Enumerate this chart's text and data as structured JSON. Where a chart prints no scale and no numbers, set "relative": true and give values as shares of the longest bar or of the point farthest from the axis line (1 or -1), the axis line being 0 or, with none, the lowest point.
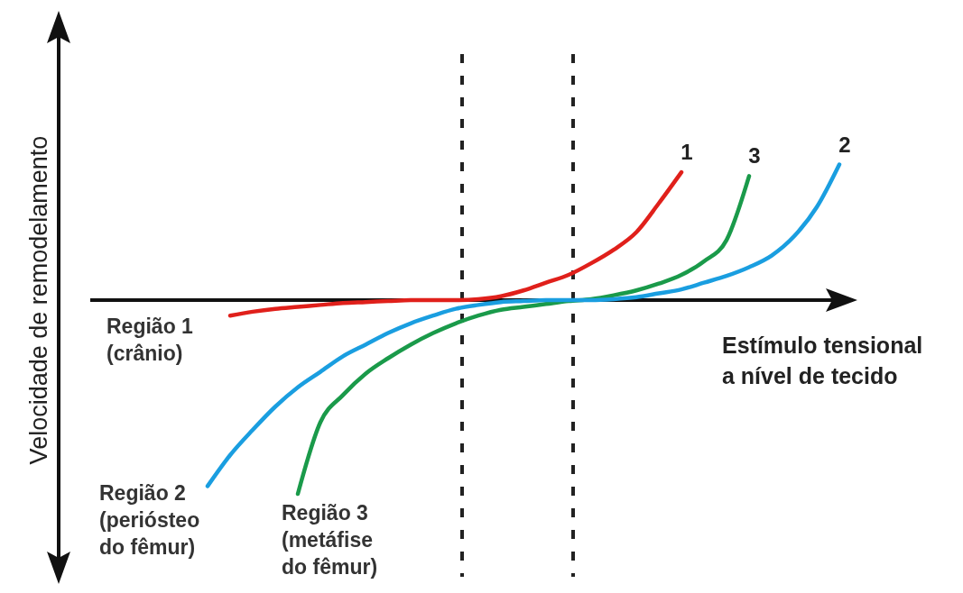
{
  "chart_data": {
    "type": "line",
    "relative": true,
    "xlabel": "Estímulo tensional\na nível de tecido",
    "ylabel": "Velocidade de remodelamento",
    "categories": [
      null,
      null,
      null,
      null,
      null,
      null,
      null,
      null,
      null,
      null,
      null,
      null,
      null,
      null,
      null,
      null,
      null,
      null,
      null,
      null,
      null,
      null,
      null,
      null,
      null,
      null,
      null,
      null,
      null,
      null,
      null,
      null,
      null,
      null
    ],
    "series": [
      {
        "name": "1",
        "color": "#e0201b",
        "values": [
          null,
          null,
          null,
          null,
          null,
          null,
          -0.08,
          -0.06,
          -0.045,
          -0.035,
          -0.025,
          -0.015,
          -0.01,
          -0.005,
          0,
          0,
          0,
          0.005,
          0.02,
          0.05,
          0.09,
          0.13,
          0.19,
          0.26,
          0.35,
          0.5,
          0.66,
          null,
          null,
          null,
          null,
          null,
          null,
          null
        ]
      },
      {
        "name": "3",
        "color": "#1a9a4a",
        "values": [
          null,
          null,
          null,
          null,
          null,
          null,
          null,
          null,
          null,
          -1,
          -0.63,
          -0.49,
          -0.38,
          -0.3,
          -0.23,
          -0.17,
          -0.12,
          -0.08,
          -0.05,
          -0.035,
          -0.02,
          -0.005,
          0.005,
          0.025,
          0.05,
          0.085,
          0.13,
          0.2,
          0.31,
          0.64,
          null,
          null,
          null,
          null
        ]
      },
      {
        "name": "2",
        "color": "#1a9ee0",
        "values": [
          null,
          null,
          null,
          null,
          null,
          -0.96,
          -0.8,
          -0.67,
          -0.55,
          -0.45,
          -0.37,
          -0.29,
          -0.23,
          -0.17,
          -0.12,
          -0.08,
          -0.045,
          -0.025,
          -0.01,
          -0.005,
          0,
          0,
          0,
          0.005,
          0.015,
          0.035,
          0.055,
          0.09,
          0.125,
          0.17,
          0.23,
          0.33,
          0.48,
          0.7
        ]
      }
    ],
    "annotations": [
      "Região 1\n(crânio)",
      "Região 2\n(periósteo\ndo fêmur)",
      "Região 3\n(metáfise\ndo fêmur)"
    ]
  }
}
